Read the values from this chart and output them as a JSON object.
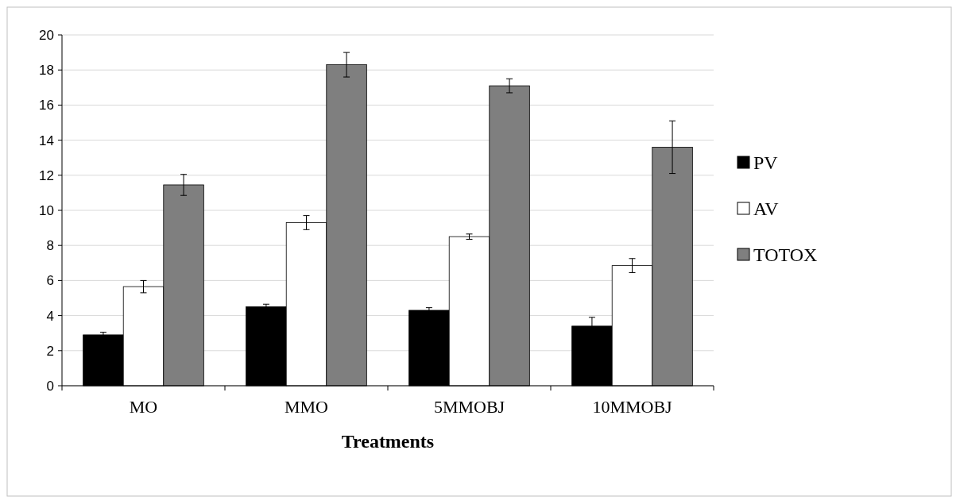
{
  "chart_data": {
    "type": "bar",
    "xlabel": "Treatments",
    "categories": [
      "MO",
      "MMO",
      "5MMOBJ",
      "10MMOBJ"
    ],
    "series": [
      {
        "name": "PV",
        "color": "#000000",
        "values": [
          2.9,
          4.5,
          4.3,
          3.4
        ],
        "errors": [
          0.15,
          0.15,
          0.15,
          0.5
        ]
      },
      {
        "name": "AV",
        "color": "#ffffff",
        "values": [
          5.65,
          9.3,
          8.5,
          6.85
        ],
        "errors": [
          0.35,
          0.4,
          0.15,
          0.4
        ]
      },
      {
        "name": "TOTOX",
        "color": "#7f7f7f",
        "values": [
          11.45,
          18.3,
          17.1,
          13.6
        ],
        "errors": [
          0.6,
          0.7,
          0.4,
          1.5
        ]
      }
    ],
    "ylim": [
      0,
      20
    ],
    "yticks": [
      0,
      2,
      4,
      6,
      8,
      10,
      12,
      14,
      16,
      18,
      20
    ],
    "grid": "y",
    "legend": "right"
  }
}
